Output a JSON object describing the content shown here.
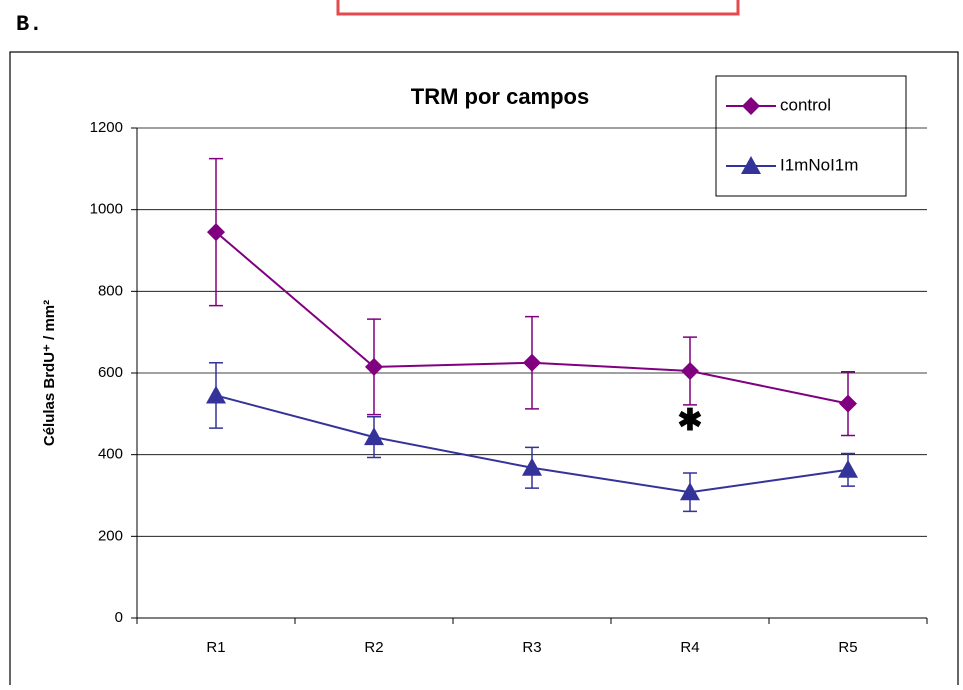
{
  "panel_label": "B.",
  "chart_data": {
    "type": "line",
    "title": "TRM por campos",
    "y_label": "Células BrdU⁺ / mm²",
    "categories": [
      "R1",
      "R2",
      "R3",
      "R4",
      "R5"
    ],
    "series": [
      {
        "name": "control",
        "color": "#800080",
        "marker": "diamond",
        "values": [
          945,
          615,
          625,
          605,
          525
        ],
        "errors": [
          180,
          117,
          113,
          83,
          78
        ]
      },
      {
        "name": "I1mNoI1m",
        "color": "#333399",
        "marker": "triangle",
        "values": [
          545,
          443,
          368,
          308,
          363
        ],
        "errors": [
          80,
          50,
          50,
          47,
          40
        ]
      }
    ],
    "annotations": [
      {
        "text": "✱",
        "category": 3,
        "y": 480
      }
    ],
    "ylim": [
      0,
      1200
    ],
    "yticks": [
      0,
      200,
      400,
      600,
      800,
      1000,
      1200
    ],
    "grid": true,
    "legend": "top-right"
  }
}
